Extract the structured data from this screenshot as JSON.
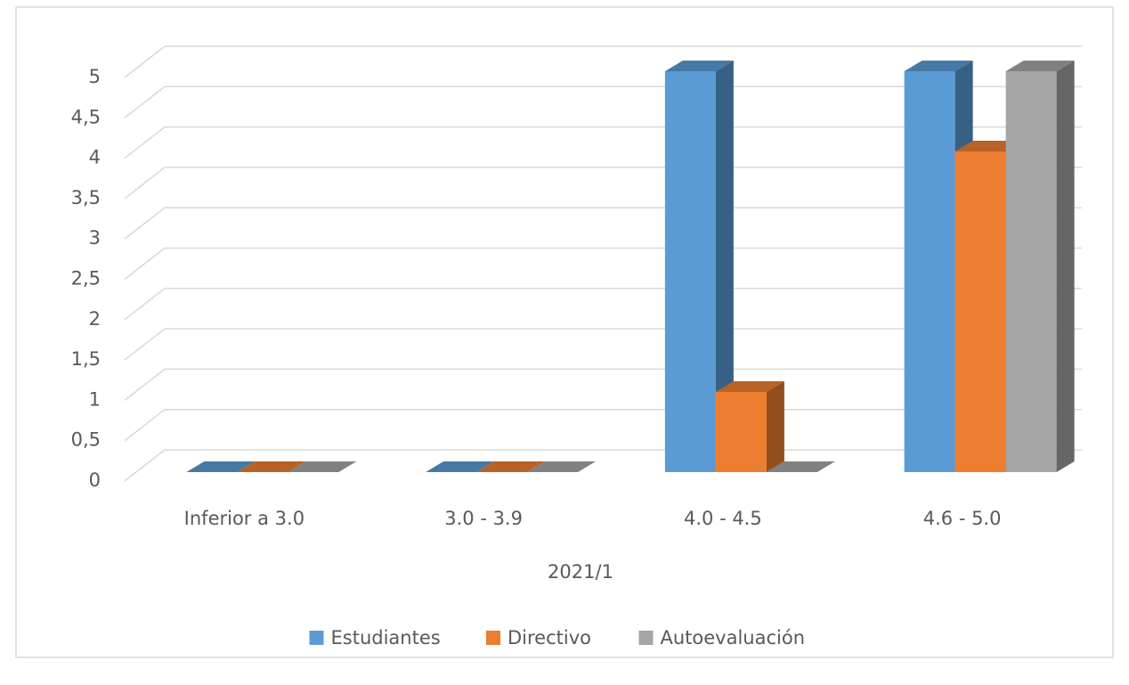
{
  "chart_data": {
    "type": "bar3d",
    "categories": [
      "Inferior a 3.0",
      "3.0 - 3.9",
      "4.0 - 4.5",
      "4.6 - 5.0"
    ],
    "x_label": "2021/1",
    "series": [
      {
        "name": "Estudiantes",
        "color": "#5b9bd5",
        "values": [
          0,
          0,
          5,
          5
        ]
      },
      {
        "name": "Directivo",
        "color": "#ed7d31",
        "values": [
          0,
          0,
          1,
          4
        ]
      },
      {
        "name": "Autoevaluación",
        "color": "#a5a5a5",
        "values": [
          0,
          0,
          0,
          5
        ]
      }
    ],
    "ylim": [
      0,
      5
    ],
    "yticks": [
      0,
      {
        "value": 0.5,
        "label": "0,5"
      },
      1,
      {
        "value": 1.5,
        "label": "1,5"
      },
      2,
      {
        "value": 2.5,
        "label": "2,5"
      },
      3,
      {
        "value": 3.5,
        "label": "3,5"
      },
      4,
      {
        "value": 4.5,
        "label": "4,5"
      },
      5
    ],
    "grid": true,
    "legend": "bottom"
  }
}
